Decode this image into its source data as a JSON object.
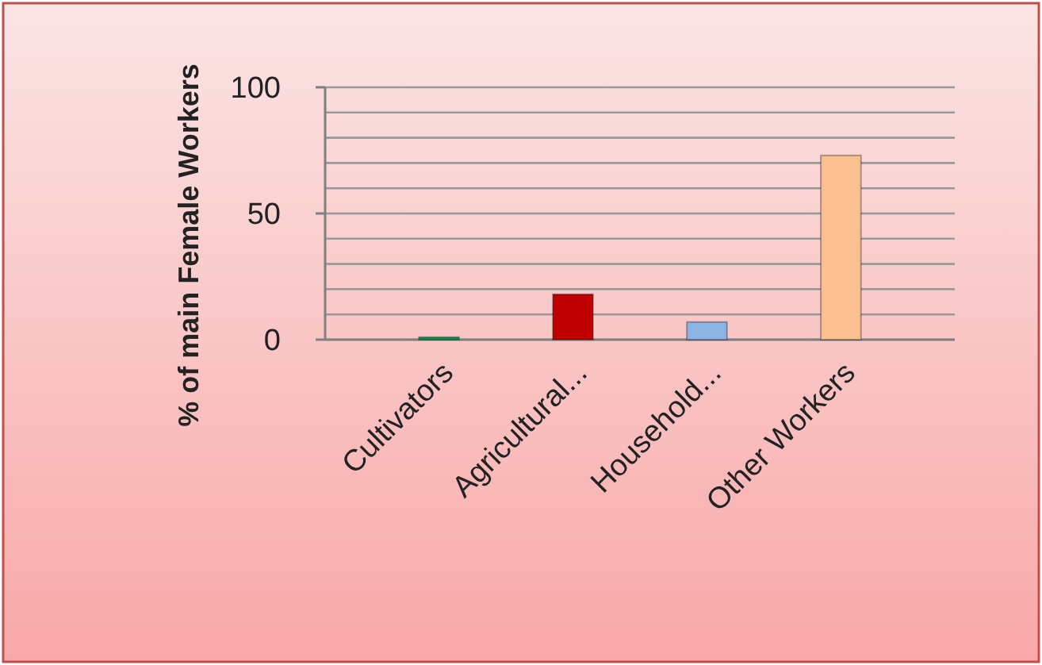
{
  "chart_data": {
    "type": "bar",
    "ylabel": "% of main Female Workers",
    "categories": [
      "Cultivators",
      "Agricultural...",
      "Household...",
      "Other Workers"
    ],
    "values": [
      1,
      18,
      7,
      73
    ],
    "colors": [
      "#00a050",
      "#c00000",
      "#8db4e2",
      "#fac090"
    ],
    "ylim": [
      0,
      100
    ],
    "yticks": [
      0,
      {
        "value": 10,
        "label": null
      },
      {
        "value": 20,
        "label": null
      },
      {
        "value": 30,
        "label": null
      },
      {
        "value": 40,
        "label": null
      },
      50,
      {
        "value": 60,
        "label": null
      },
      {
        "value": 70,
        "label": null
      },
      {
        "value": 80,
        "label": null
      },
      {
        "value": 90,
        "label": null
      },
      100
    ],
    "grid": true
  }
}
